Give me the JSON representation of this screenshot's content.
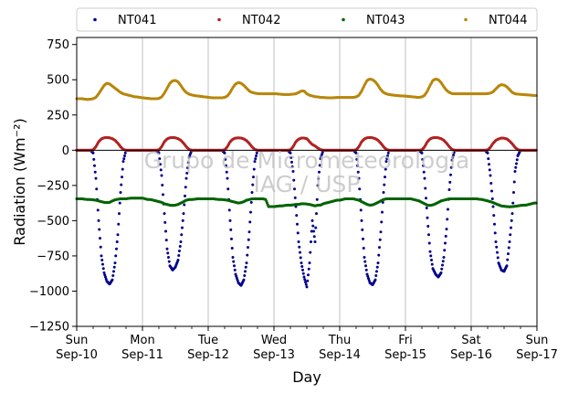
{
  "chart_data": {
    "type": "scatter",
    "xlabel": "Day",
    "ylabel": "Radiation (Wm⁻²)",
    "ylim": [
      -1250,
      800
    ],
    "xlim": [
      0,
      7
    ],
    "yticks": [
      -1250,
      -1000,
      -750,
      -500,
      -250,
      0,
      250,
      500,
      750
    ],
    "xticks": [
      {
        "day": "Sun",
        "date": "Sep-10"
      },
      {
        "day": "Mon",
        "date": "Sep-11"
      },
      {
        "day": "Tue",
        "date": "Sep-12"
      },
      {
        "day": "Wed",
        "date": "Sep-13"
      },
      {
        "day": "Thu",
        "date": "Sep-14"
      },
      {
        "day": "Fri",
        "date": "Sep-15"
      },
      {
        "day": "Sat",
        "date": "Sep-16"
      },
      {
        "day": "Sun",
        "date": "Sep-17"
      }
    ],
    "grid": "vertical",
    "legend_placement": "top, outside plot, 4 columns",
    "zero_line": true,
    "watermark": [
      "Grupo de Micrometeorologia",
      "IAG / USP"
    ],
    "series": [
      {
        "name": "NT041",
        "color": "#00008b",
        "description": "night ~0, daytime dips",
        "daily_minimum": [
          -950,
          -850,
          -960,
          -970,
          -955,
          -900,
          -860
        ],
        "values_hourly": [
          [
            0,
            0,
            0,
            0,
            0,
            0,
            -20,
            -200,
            -500,
            -750,
            -870,
            -930,
            -950,
            -920,
            -800,
            -600,
            -300,
            -80,
            0,
            0,
            0,
            0,
            0,
            0
          ],
          [
            0,
            0,
            0,
            0,
            0,
            0,
            -20,
            -180,
            -450,
            -700,
            -820,
            -850,
            -830,
            -780,
            -650,
            -450,
            -200,
            -50,
            0,
            0,
            0,
            0,
            0,
            0
          ],
          [
            0,
            0,
            0,
            0,
            0,
            0,
            -20,
            -200,
            -500,
            -760,
            -880,
            -940,
            -960,
            -920,
            -800,
            -580,
            -300,
            -80,
            0,
            0,
            0,
            0,
            0,
            0
          ],
          [
            0,
            0,
            0,
            0,
            0,
            0,
            -20,
            -150,
            -400,
            -650,
            -800,
            -900,
            -970,
            -800,
            -500,
            -650,
            -250,
            -60,
            0,
            0,
            0,
            0,
            0,
            0
          ],
          [
            0,
            0,
            0,
            0,
            0,
            0,
            -20,
            -200,
            -500,
            -760,
            -880,
            -940,
            -955,
            -920,
            -800,
            -580,
            -300,
            -80,
            0,
            0,
            0,
            0,
            0,
            0
          ],
          [
            0,
            0,
            0,
            0,
            0,
            0,
            -20,
            -200,
            -480,
            -720,
            -840,
            -880,
            -900,
            -870,
            -760,
            -560,
            -280,
            -70,
            0,
            0,
            0,
            0,
            0,
            0
          ],
          [
            0,
            0,
            0,
            0,
            0,
            0,
            -20,
            -180,
            -400,
            -650,
            -800,
            -850,
            -860,
            -820,
            -650,
            -450,
            -150,
            -40,
            0,
            0,
            0,
            0,
            0,
            0
          ]
        ]
      },
      {
        "name": "NT042",
        "color": "#b22222",
        "description": "night ~0, daytime humps",
        "values_hourly": [
          [
            0,
            0,
            0,
            0,
            0,
            0,
            2,
            25,
            60,
            80,
            88,
            90,
            88,
            82,
            70,
            50,
            25,
            5,
            0,
            0,
            0,
            0,
            0,
            0
          ],
          [
            0,
            0,
            0,
            0,
            0,
            0,
            2,
            25,
            60,
            80,
            88,
            90,
            88,
            82,
            70,
            50,
            25,
            5,
            0,
            0,
            0,
            0,
            0,
            0
          ],
          [
            0,
            0,
            0,
            0,
            0,
            0,
            2,
            25,
            60,
            78,
            86,
            88,
            86,
            80,
            68,
            48,
            24,
            5,
            0,
            0,
            0,
            0,
            0,
            0
          ],
          [
            0,
            0,
            0,
            0,
            0,
            0,
            2,
            25,
            60,
            78,
            86,
            86,
            82,
            60,
            40,
            30,
            15,
            4,
            0,
            0,
            0,
            0,
            0,
            0
          ],
          [
            0,
            0,
            0,
            0,
            0,
            0,
            2,
            25,
            60,
            80,
            88,
            90,
            88,
            82,
            70,
            50,
            25,
            5,
            0,
            0,
            0,
            0,
            0,
            0
          ],
          [
            0,
            0,
            0,
            0,
            0,
            0,
            2,
            25,
            60,
            80,
            88,
            90,
            88,
            82,
            70,
            50,
            25,
            5,
            0,
            0,
            0,
            0,
            0,
            0
          ],
          [
            0,
            0,
            0,
            0,
            0,
            0,
            2,
            20,
            50,
            70,
            80,
            86,
            85,
            80,
            65,
            45,
            20,
            4,
            0,
            0,
            0,
            0,
            0,
            0
          ]
        ]
      },
      {
        "name": "NT043",
        "color": "#006400",
        "description": "steady ~-350 to -400",
        "values_hourly": [
          [
            -345,
            -345,
            -345,
            -348,
            -350,
            -350,
            -352,
            -355,
            -360,
            -365,
            -370,
            -372,
            -370,
            -360,
            -352,
            -348,
            -345,
            -345,
            -345,
            -342,
            -340,
            -340,
            -340,
            -340
          ],
          [
            -340,
            -345,
            -350,
            -350,
            -355,
            -360,
            -365,
            -370,
            -380,
            -385,
            -390,
            -392,
            -390,
            -385,
            -375,
            -365,
            -355,
            -350,
            -350,
            -348,
            -345,
            -345,
            -345,
            -345
          ],
          [
            -345,
            -345,
            -345,
            -348,
            -350,
            -350,
            -352,
            -355,
            -360,
            -365,
            -370,
            -375,
            -372,
            -365,
            -355,
            -350,
            -345,
            -345,
            -345,
            -345,
            -345,
            -350,
            -400,
            -400
          ],
          [
            -400,
            -398,
            -395,
            -395,
            -392,
            -390,
            -390,
            -388,
            -385,
            -385,
            -380,
            -380,
            -382,
            -385,
            -390,
            -395,
            -390,
            -390,
            -380,
            -375,
            -370,
            -365,
            -360,
            -355
          ],
          [
            -355,
            -350,
            -345,
            -345,
            -345,
            -345,
            -350,
            -355,
            -365,
            -375,
            -385,
            -390,
            -388,
            -380,
            -370,
            -360,
            -350,
            -345,
            -345,
            -345,
            -345,
            -345,
            -345,
            -345
          ],
          [
            -345,
            -345,
            -345,
            -350,
            -355,
            -360,
            -370,
            -380,
            -390,
            -392,
            -388,
            -380,
            -370,
            -360,
            -355,
            -350,
            -345,
            -345,
            -345,
            -345,
            -345,
            -345,
            -345,
            -345
          ],
          [
            -345,
            -345,
            -345,
            -348,
            -350,
            -355,
            -360,
            -365,
            -372,
            -380,
            -388,
            -395,
            -398,
            -400,
            -402,
            -400,
            -398,
            -395,
            -392,
            -390,
            -390,
            -385,
            -380,
            -375
          ]
        ]
      },
      {
        "name": "NT044",
        "color": "#b8860b",
        "description": "nightly ~370-400, daytime peaks",
        "daily_peak": [
          475,
          495,
          480,
          420,
          505,
          505,
          465
        ],
        "values_hourly": [
          [
            365,
            365,
            365,
            362,
            360,
            362,
            365,
            375,
            400,
            430,
            460,
            475,
            470,
            455,
            440,
            425,
            410,
            400,
            395,
            390,
            385,
            380,
            378,
            375
          ],
          [
            372,
            370,
            368,
            366,
            365,
            365,
            368,
            378,
            405,
            440,
            475,
            492,
            495,
            485,
            460,
            430,
            410,
            398,
            392,
            388,
            385,
            383,
            380,
            378
          ],
          [
            375,
            373,
            372,
            372,
            372,
            372,
            375,
            385,
            410,
            445,
            470,
            480,
            475,
            460,
            440,
            420,
            410,
            405,
            402,
            400,
            400,
            400,
            400,
            400
          ],
          [
            400,
            400,
            398,
            396,
            395,
            395,
            396,
            398,
            400,
            410,
            420,
            420,
            400,
            390,
            385,
            380,
            378,
            375,
            374,
            373,
            372,
            372,
            373,
            374
          ],
          [
            374,
            374,
            374,
            374,
            374,
            375,
            378,
            390,
            420,
            460,
            495,
            505,
            500,
            485,
            460,
            430,
            410,
            400,
            395,
            392,
            390,
            388,
            386,
            385
          ],
          [
            384,
            382,
            380,
            378,
            376,
            375,
            378,
            390,
            420,
            460,
            495,
            505,
            500,
            480,
            450,
            425,
            410,
            402,
            400,
            400,
            400,
            400,
            400,
            400
          ],
          [
            400,
            400,
            400,
            400,
            400,
            400,
            402,
            405,
            415,
            435,
            455,
            465,
            462,
            450,
            430,
            410,
            400,
            398,
            396,
            395,
            393,
            392,
            390,
            388
          ]
        ]
      }
    ]
  }
}
